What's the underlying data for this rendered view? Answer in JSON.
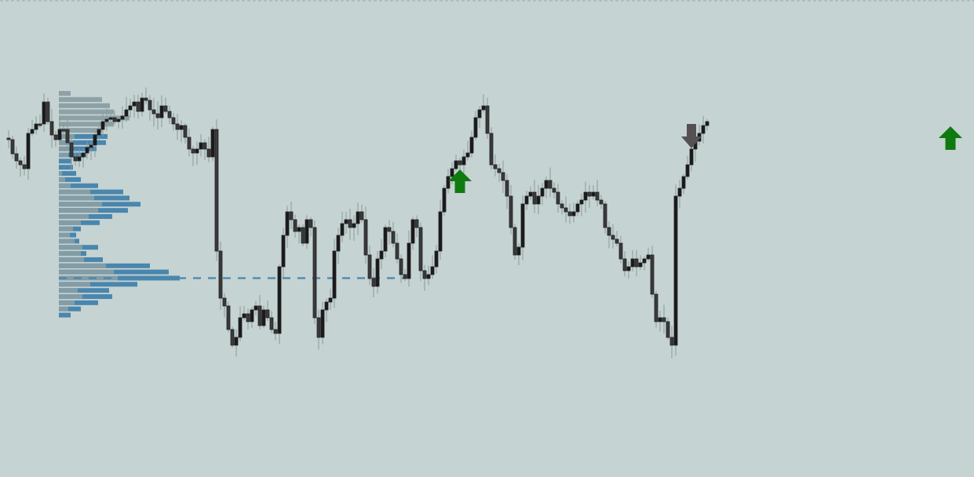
{
  "colors": {
    "background": "#c5d3d3",
    "candle_body": "#222222",
    "candle_up_fill": "#1a1a1a",
    "wick": "#8a9a9a",
    "profile_blue": "#4a86ad",
    "profile_grey": "#8a9ea4",
    "profile_light": "#a9b7b8",
    "poc_line": "#4a86ad",
    "arrow_up": "#0f7a0f",
    "arrow_down": "#555152",
    "top_border": "#9aa8a8"
  },
  "chart_data": {
    "type": "candlestick",
    "title": "",
    "xlabel": "",
    "ylabel": "",
    "grid": false,
    "ylim": [
      0,
      608
    ],
    "closes": [
      176,
      178,
      196,
      205,
      210,
      215,
      170,
      165,
      158,
      158,
      130,
      155,
      172,
      178,
      165,
      165,
      182,
      200,
      205,
      200,
      195,
      188,
      185,
      172,
      165,
      155,
      152,
      150,
      155,
      152,
      148,
      140,
      135,
      130,
      142,
      125,
      128,
      140,
      145,
      150,
      135,
      142,
      150,
      158,
      165,
      160,
      175,
      190,
      195,
      190,
      182,
      190,
      200,
      165,
      320,
      380,
      390,
      420,
      440,
      430,
      405,
      400,
      410,
      395,
      390,
      415,
      395,
      405,
      420,
      425,
      340,
      300,
      270,
      280,
      295,
      290,
      310,
      280,
      290,
      405,
      430,
      395,
      385,
      380,
      320,
      300,
      285,
      280,
      290,
      285,
      270,
      280,
      325,
      355,
      365,
      330,
      320,
      290,
      295,
      310,
      330,
      350,
      355,
      310,
      280,
      290,
      345,
      355,
      350,
      340,
      320,
      270,
      240,
      225,
      215,
      205,
      210,
      200,
      195,
      175,
      150,
      140,
      135,
      170,
      210,
      215,
      220,
      230,
      250,
      290,
      325,
      315,
      260,
      250,
      245,
      260,
      250,
      240,
      230,
      240,
      245,
      260,
      265,
      270,
      275,
      270,
      260,
      255,
      245,
      250,
      245,
      255,
      260,
      290,
      300,
      305,
      310,
      330,
      345,
      340,
      330,
      340,
      335,
      330,
      325,
      375,
      410,
      405,
      410,
      430,
      440,
      250,
      240,
      225,
      210,
      190,
      180,
      170,
      160,
      155
    ]
  },
  "volume_profile": {
    "rows": [
      {
        "total": 15,
        "blue": 0,
        "grey": 15
      },
      {
        "total": 55,
        "blue": 0,
        "grey": 55
      },
      {
        "total": 65,
        "blue": 0,
        "grey": 65
      },
      {
        "total": 70,
        "blue": 0,
        "grey": 70
      },
      {
        "total": 90,
        "blue": 0,
        "grey": 90
      },
      {
        "total": 70,
        "blue": 0,
        "grey": 70
      },
      {
        "total": 55,
        "blue": 0,
        "grey": 55
      },
      {
        "total": 62,
        "blue": 60,
        "grey": 20
      },
      {
        "total": 60,
        "blue": 58,
        "grey": 18
      },
      {
        "total": 48,
        "blue": 45,
        "grey": 16
      },
      {
        "total": 35,
        "blue": 32,
        "grey": 12
      },
      {
        "total": 16,
        "blue": 16,
        "grey": 0
      },
      {
        "total": 18,
        "blue": 18,
        "grey": 0
      },
      {
        "total": 22,
        "blue": 22,
        "grey": 4
      },
      {
        "total": 28,
        "blue": 28,
        "grey": 8
      },
      {
        "total": 50,
        "blue": 50,
        "grey": 15
      },
      {
        "total": 82,
        "blue": 82,
        "grey": 40
      },
      {
        "total": 90,
        "blue": 90,
        "grey": 45
      },
      {
        "total": 104,
        "blue": 104,
        "grey": 55
      },
      {
        "total": 88,
        "blue": 88,
        "grey": 50
      },
      {
        "total": 68,
        "blue": 68,
        "grey": 38
      },
      {
        "total": 52,
        "blue": 52,
        "grey": 28
      },
      {
        "total": 28,
        "blue": 28,
        "grey": 18
      },
      {
        "total": 22,
        "blue": 22,
        "grey": 14
      },
      {
        "total": 26,
        "blue": 26,
        "grey": 20
      },
      {
        "total": 50,
        "blue": 50,
        "grey": 30
      },
      {
        "total": 35,
        "blue": 35,
        "grey": 28
      },
      {
        "total": 56,
        "blue": 56,
        "grey": 32
      },
      {
        "total": 116,
        "blue": 116,
        "grey": 60
      },
      {
        "total": 140,
        "blue": 140,
        "grey": 70
      },
      {
        "total": 154,
        "blue": 154,
        "grey": 75
      },
      {
        "total": 100,
        "blue": 100,
        "grey": 40
      },
      {
        "total": 64,
        "blue": 64,
        "grey": 24
      },
      {
        "total": 68,
        "blue": 68,
        "grey": 30
      },
      {
        "total": 50,
        "blue": 50,
        "grey": 20
      },
      {
        "total": 28,
        "blue": 28,
        "grey": 12
      },
      {
        "total": 15,
        "blue": 15,
        "grey": 0
      }
    ],
    "poc_row": 30
  },
  "signals": [
    {
      "type": "buy",
      "bar": 116
    },
    {
      "type": "sell",
      "bar": 175
    },
    {
      "type": "buy",
      "bar": 241
    }
  ]
}
